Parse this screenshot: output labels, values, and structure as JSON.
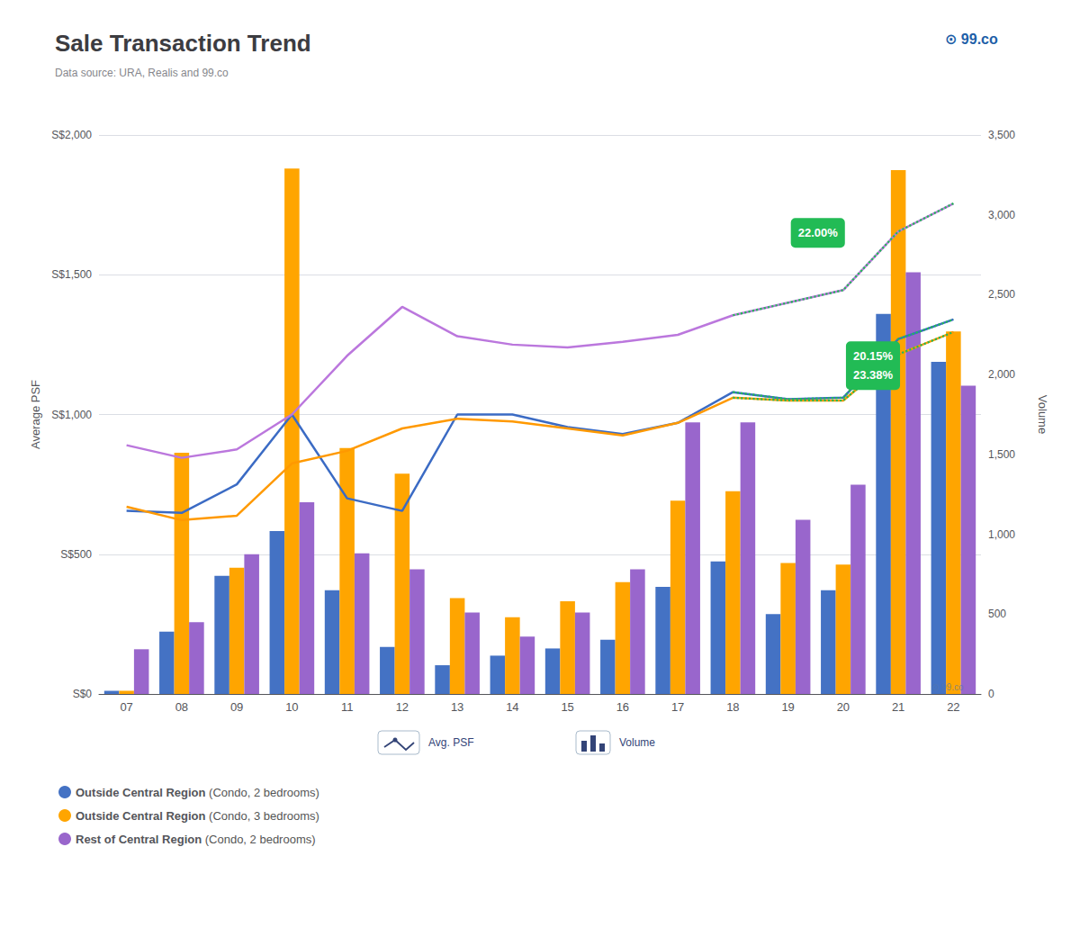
{
  "chart_data": {
    "type": "bar",
    "title": "Sale Transaction Trend",
    "subtitle": "Data source: URA, Realis and 99.co",
    "ylabel": "Average PSF",
    "y2label": "Volume",
    "categories": [
      "07",
      "08",
      "09",
      "10",
      "11",
      "12",
      "13",
      "14",
      "15",
      "16",
      "17",
      "18",
      "19",
      "20",
      "21",
      "22"
    ],
    "series": [
      {
        "name": "Outside Central Region (Condo, 2 bedrooms)",
        "type": "bar",
        "axis": "y2",
        "color": "#4472C4",
        "values": [
          20,
          390,
          740,
          1020,
          650,
          295,
          180,
          240,
          285,
          340,
          670,
          830,
          500,
          650,
          2380,
          2080
        ]
      },
      {
        "name": "Outside Central Region (Condo, 3 bedrooms)",
        "type": "bar",
        "axis": "y2",
        "color": "#FFA500",
        "values": [
          20,
          1510,
          790,
          3290,
          1540,
          1380,
          600,
          480,
          580,
          700,
          1210,
          1270,
          820,
          810,
          3280,
          2270
        ]
      },
      {
        "name": "Rest of Central Region (Condo, 2 bedrooms)",
        "type": "bar",
        "axis": "y2",
        "color": "#9966CC",
        "values": [
          280,
          450,
          875,
          1200,
          880,
          780,
          510,
          360,
          510,
          780,
          1700,
          1700,
          1090,
          1310,
          2640,
          1930
        ]
      },
      {
        "name": "Outside Central Region (Condo, 2 bedrooms)",
        "type": "line",
        "axis": "y",
        "color": "#3B6BC4",
        "line_style": "solid",
        "values": [
          655,
          648,
          750,
          1000,
          700,
          655,
          1000,
          1000,
          955,
          930,
          970,
          1080,
          1055,
          1060,
          1270,
          1340
        ]
      },
      {
        "name": "Outside Central Region (Condo, 3 bedrooms)",
        "type": "line",
        "axis": "y",
        "color": "#FF9900",
        "line_style": "solid",
        "values": [
          670,
          622,
          638,
          825,
          870,
          950,
          985,
          975,
          950,
          925,
          970,
          1060,
          1050,
          1050,
          1215,
          1295
        ]
      },
      {
        "name": "Rest of Central Region (Condo, 2 bedrooms)",
        "type": "line",
        "axis": "y",
        "color": "#BB77DD",
        "line_style": "solid",
        "values": [
          890,
          845,
          875,
          1000,
          1210,
          1385,
          1280,
          1250,
          1240,
          1260,
          1285,
          1355,
          1400,
          1445,
          1655,
          1755
        ]
      },
      {
        "type": "line",
        "axis": "y",
        "color": "#22BB55",
        "line_style": "dotted",
        "values": [
          null,
          null,
          null,
          null,
          null,
          null,
          null,
          null,
          null,
          null,
          null,
          1080,
          1055,
          1060,
          1270,
          1340
        ]
      },
      {
        "type": "line",
        "axis": "y",
        "color": "#22BB55",
        "line_style": "dotted",
        "values": [
          null,
          null,
          null,
          null,
          null,
          null,
          null,
          null,
          null,
          null,
          null,
          1060,
          1050,
          1050,
          1215,
          1295
        ]
      },
      {
        "type": "line",
        "axis": "y",
        "color": "#22BB55",
        "line_style": "dotted",
        "values": [
          null,
          null,
          null,
          null,
          null,
          null,
          null,
          null,
          null,
          null,
          null,
          1355,
          1400,
          1445,
          1655,
          1755
        ]
      }
    ],
    "ylim": [
      0,
      2000
    ],
    "yticks": [
      {
        "value": 0,
        "label": "S$0"
      },
      {
        "value": 500,
        "label": "S$500"
      },
      {
        "value": 1000,
        "label": "S$1,000"
      },
      {
        "value": 1500,
        "label": "S$1,500"
      },
      {
        "value": 2000,
        "label": "S$2,000"
      }
    ],
    "y2lim": [
      0,
      3500
    ],
    "y2ticks": [
      0,
      500,
      {
        "value": 1000,
        "label": "1,000"
      },
      {
        "value": 1500,
        "label": "1,500"
      },
      {
        "value": 2000,
        "label": "2,000"
      },
      {
        "value": 2500,
        "label": "2,500"
      },
      {
        "value": 3000,
        "label": "3,000"
      },
      {
        "value": 3500,
        "label": "3,500"
      }
    ],
    "annotations": [
      "22.00%",
      "20.15%",
      "23.38%",
      "⊙ 99.co",
      "⊙ 99.co",
      "Avg. PSF",
      "Volume"
    ],
    "grid": true,
    "legend": "lower left"
  }
}
